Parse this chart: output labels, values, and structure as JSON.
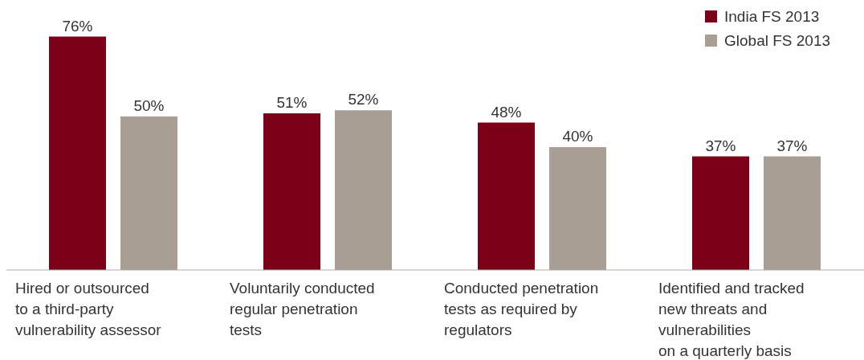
{
  "chart_data": {
    "type": "bar",
    "categories": [
      "Hired or outsourced\nto a third-party\nvulnerability assessor",
      "Voluntarily conducted\nregular penetration\ntests",
      "Conducted penetration\ntests as required by\nregulators",
      "Identified and tracked\nnew threats and\nvulnerabilities\non a quarterly basis"
    ],
    "series": [
      {
        "name": "India FS 2013",
        "color": "#7d0019",
        "values": [
          76,
          51,
          48,
          37
        ],
        "value_labels": [
          "76%",
          "51%",
          "48%",
          "37%"
        ]
      },
      {
        "name": "Global FS 2013",
        "color": "#a89e94",
        "values": [
          50,
          52,
          40,
          37
        ],
        "value_labels": [
          "50%",
          "52%",
          "40%",
          "37%"
        ]
      }
    ],
    "legend": "top right"
  }
}
